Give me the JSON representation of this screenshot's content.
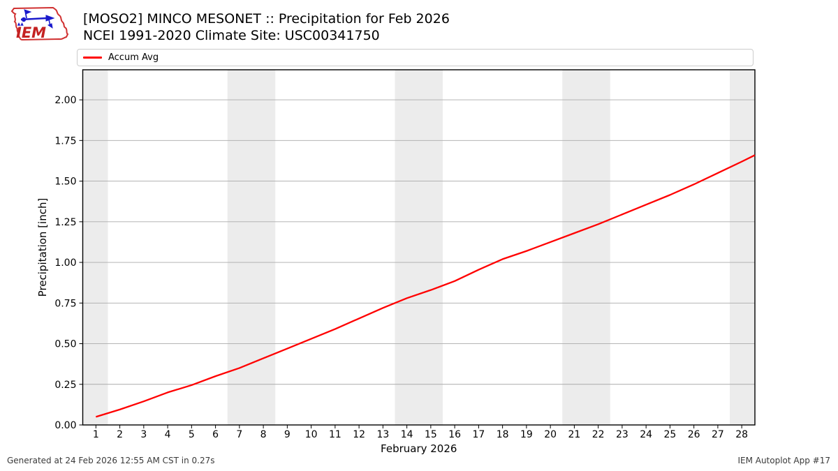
{
  "header": {
    "logo_text": "IEM"
  },
  "legend": {
    "label": "Accum Avg"
  },
  "footer": {
    "left": "Generated at 24 Feb 2026 12:55 AM CST in 0.27s",
    "right": "IEM Autoplot App #17"
  },
  "chart_data": {
    "type": "line",
    "title": "[MOSO2] MINCO MESONET :: Precipitation for Feb 2026",
    "subtitle": "NCEI 1991-2020 Climate Site: USC00341750",
    "xlabel": "February 2026",
    "ylabel": "Precipitation [inch]",
    "xlim": [
      0.45,
      28.55
    ],
    "ylim": [
      0,
      2.185
    ],
    "x_ticks": [
      1,
      2,
      3,
      4,
      5,
      6,
      7,
      8,
      9,
      10,
      11,
      12,
      13,
      14,
      15,
      16,
      17,
      18,
      19,
      20,
      21,
      22,
      23,
      24,
      25,
      26,
      27,
      28
    ],
    "y_tick_labels": [
      "0.00",
      "0.25",
      "0.50",
      "0.75",
      "1.00",
      "1.25",
      "1.50",
      "1.75",
      "2.00"
    ],
    "grid": "horizontal",
    "legend_position": "top",
    "weekend_bands": [
      [
        0.45,
        1.5
      ],
      [
        6.5,
        8.5
      ],
      [
        13.5,
        15.5
      ],
      [
        20.5,
        22.5
      ],
      [
        27.5,
        28.55
      ]
    ],
    "colors": {
      "line": "#ff0000",
      "band": "#ececec",
      "grid": "#aaaaaa",
      "axis": "#000000"
    },
    "series": [
      {
        "name": "Accum Avg",
        "x": [
          1,
          2,
          3,
          4,
          5,
          6,
          7,
          8,
          9,
          10,
          11,
          12,
          13,
          14,
          15,
          16,
          17,
          18,
          19,
          20,
          21,
          22,
          23,
          24,
          25,
          26,
          27,
          28
        ],
        "values": [
          0.05,
          0.095,
          0.145,
          0.2,
          0.245,
          0.3,
          0.35,
          0.41,
          0.47,
          0.53,
          0.59,
          0.655,
          0.72,
          0.78,
          0.83,
          0.885,
          0.955,
          1.02,
          1.07,
          1.125,
          1.18,
          1.235,
          1.295,
          1.355,
          1.415,
          1.48,
          1.55,
          1.62
        ],
        "edge_point": {
          "x": 28.55,
          "value": 1.66
        }
      }
    ]
  }
}
